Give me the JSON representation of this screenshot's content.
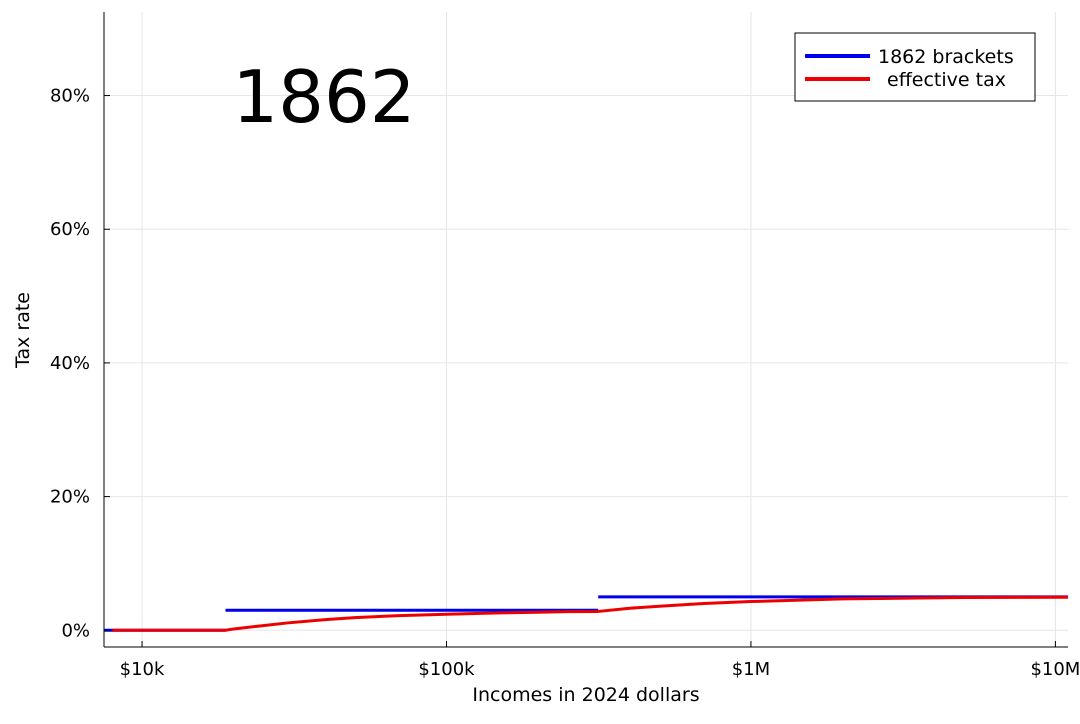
{
  "chart_data": {
    "type": "line",
    "annotation": "1862",
    "xlabel": "Incomes in 2024 dollars",
    "ylabel": "Tax rate",
    "x_scale": "log",
    "xlim": [
      7500,
      11000000
    ],
    "ylim": [
      -0.025,
      0.925
    ],
    "x_ticks": [
      {
        "value": 10000,
        "label": "$10k"
      },
      {
        "value": 100000,
        "label": "$100k"
      },
      {
        "value": 1000000,
        "label": "$1M"
      },
      {
        "value": 10000000,
        "label": "$10M"
      }
    ],
    "y_ticks": [
      {
        "value": 0.0,
        "label": "0%"
      },
      {
        "value": 0.2,
        "label": "20%"
      },
      {
        "value": 0.4,
        "label": "40%"
      },
      {
        "value": 0.6,
        "label": "60%"
      },
      {
        "value": 0.8,
        "label": "80%"
      }
    ],
    "grid": true,
    "legend_position": "top-right",
    "series": [
      {
        "name": "1862 brackets",
        "color": "#0000ee",
        "style": "step",
        "segments": [
          {
            "x": [
              7500,
              18800
            ],
            "y": 0.0
          },
          {
            "x": [
              18800,
              315000
            ],
            "y": 0.03
          },
          {
            "x": [
              315000,
              11000000
            ],
            "y": 0.05
          }
        ]
      },
      {
        "name": "effective tax",
        "color": "#ee0000",
        "x": [
          8000,
          12000,
          18800,
          20000,
          25000,
          30000,
          40000,
          50000,
          70000,
          100000,
          150000,
          200000,
          250000,
          315000,
          400000,
          500000,
          700000,
          1000000,
          2000000,
          5000000,
          11000000
        ],
        "y": [
          0.0,
          0.0,
          0.0,
          0.002,
          0.007,
          0.011,
          0.016,
          0.019,
          0.022,
          0.024,
          0.026,
          0.027,
          0.028,
          0.0282,
          0.033,
          0.036,
          0.04,
          0.043,
          0.047,
          0.049,
          0.0495
        ]
      }
    ]
  }
}
